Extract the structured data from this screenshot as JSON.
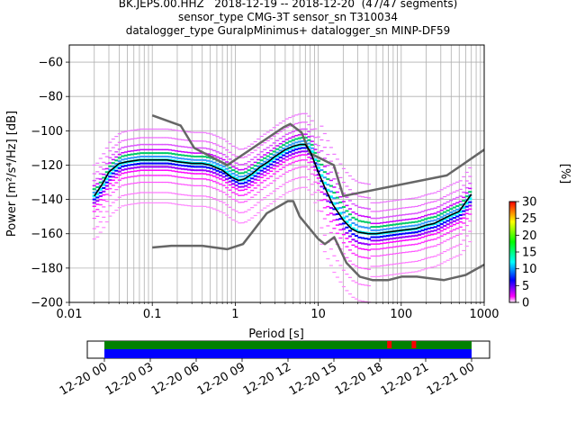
{
  "header": {
    "title_line1": "BK.JEPS.00.HHZ   2018-12-19 -- 2018-12-20  (47/47 segments)",
    "title_line2": "sensor_type CMG-3T sensor_sn T310034",
    "title_line3": "datalogger_type GuralpMinimus+ datalogger_sn MINP-DF59"
  },
  "chart_data": [
    {
      "type": "heatmap",
      "xlabel": "Period [s]",
      "ylabel": "Power [m²/s⁴/Hz] [dB]",
      "xscale": "log",
      "xlim": [
        0.01,
        1000
      ],
      "ylim": [
        -200,
        -50
      ],
      "x_ticks": [
        "0.01",
        "0.1",
        "1",
        "10",
        "100",
        "1000"
      ],
      "y_ticks": [
        "−200",
        "−180",
        "−160",
        "−140",
        "−120",
        "−100",
        "−80",
        "−60"
      ],
      "grid": true,
      "colorbar": {
        "label": "[%]",
        "ticks": [
          "0",
          "5",
          "10",
          "15",
          "20",
          "25",
          "30"
        ],
        "range": [
          0,
          30
        ]
      },
      "mode_curve": {
        "x": [
          0.02,
          0.025,
          0.03,
          0.04,
          0.05,
          0.07,
          0.1,
          0.15,
          0.2,
          0.3,
          0.4,
          0.5,
          0.7,
          0.9,
          1.1,
          1.3,
          1.6,
          2,
          2.5,
          3,
          4,
          5,
          6,
          7,
          8,
          10,
          12,
          15,
          20,
          25,
          30,
          40,
          50,
          70,
          100,
          150,
          200,
          250,
          300,
          400,
          500,
          700
        ],
        "y": [
          -138,
          -131,
          -124,
          -119,
          -118,
          -117,
          -117,
          -117,
          -118,
          -119,
          -119,
          -120,
          -123,
          -127,
          -129,
          -128,
          -125,
          -121,
          -118,
          -115,
          -111,
          -109,
          -108,
          -108,
          -112,
          -124,
          -133,
          -143,
          -152,
          -157,
          -159,
          -160,
          -160,
          -159,
          -158,
          -157,
          -155,
          -154,
          -152,
          -149,
          -147,
          -137
        ]
      },
      "nhnm": {
        "x": [
          0.1,
          0.22,
          0.32,
          0.8,
          3.8,
          4.6,
          6.3,
          7.9,
          15.4,
          20,
          354.8,
          1000
        ],
        "y": [
          -91,
          -97,
          -110,
          -120,
          -98,
          -96,
          -101,
          -113,
          -120,
          -138,
          -126,
          -111
        ]
      },
      "nlnm": {
        "x": [
          0.1,
          0.17,
          0.4,
          0.8,
          1.24,
          2.4,
          4.3,
          5,
          6,
          10,
          12,
          15.6,
          21.9,
          31.6,
          45,
          70,
          101,
          154,
          328,
          600,
          1000
        ],
        "y": [
          -168,
          -167,
          -167,
          -169,
          -166,
          -148,
          -141,
          -141,
          -150,
          -163,
          -166,
          -162,
          -177,
          -185,
          -187,
          -187,
          -185,
          -185,
          -187,
          -184,
          -178
        ]
      }
    },
    {
      "type": "timeline",
      "x_ticks": [
        "12-20 00",
        "12-20 03",
        "12-20 06",
        "12-20 09",
        "12-20 12",
        "12-20 15",
        "12-20 18",
        "12-20 21",
        "12-21 00"
      ],
      "track_colors": {
        "upper": "#008000",
        "lower": "#0000ff",
        "marker": "#ff0000"
      },
      "markers_hours": [
        18.6,
        20.2
      ]
    }
  ]
}
